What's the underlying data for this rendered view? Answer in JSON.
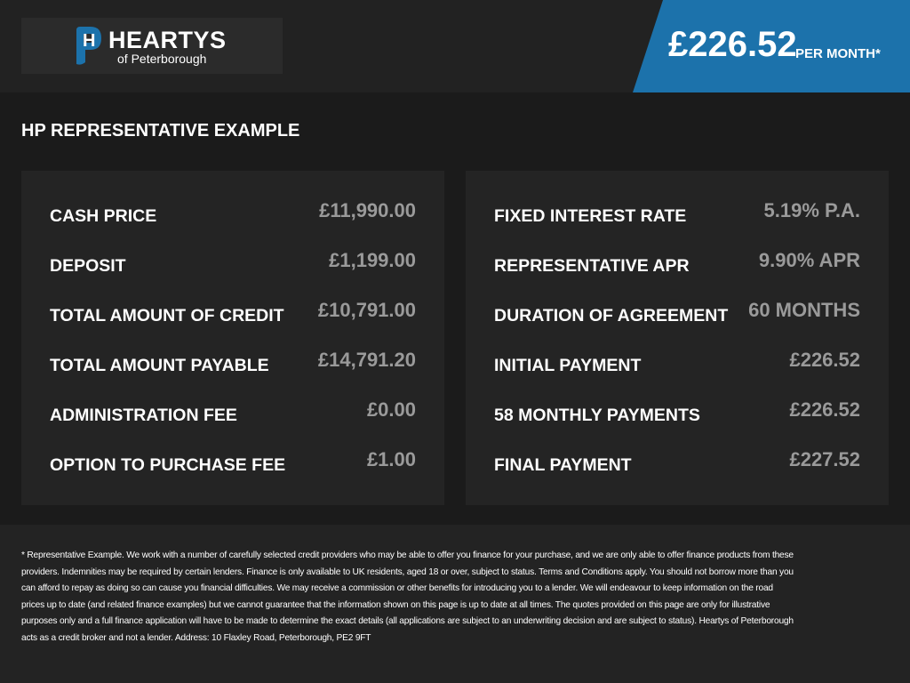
{
  "header": {
    "logo": {
      "name": "HEARTYS",
      "location": "of Peterborough"
    },
    "price": "£226.52",
    "price_note": "PER MONTH*"
  },
  "title": "HP REPRESENTATIVE EXAMPLE",
  "panels": [
    {
      "rows": [
        [
          "CASH PRICE",
          "£11,990.00"
        ],
        [
          "DEPOSIT",
          "£1,199.00"
        ],
        [
          "TOTAL AMOUNT OF CREDIT",
          "£10,791.00"
        ],
        [
          "TOTAL AMOUNT PAYABLE",
          "£14,791.20"
        ],
        [
          "ADMINISTRATION FEE",
          "£0.00"
        ],
        [
          "OPTION TO PURCHASE FEE",
          "£1.00"
        ]
      ]
    },
    {
      "rows": [
        [
          "FIXED INTEREST RATE",
          "5.19% P.A."
        ],
        [
          "REPRESENTATIVE APR",
          "9.90% APR"
        ],
        [
          "DURATION OF AGREEMENT",
          "60 MONTHS"
        ],
        [
          "INITIAL PAYMENT",
          "£226.52"
        ],
        [
          "58 MONTHLY PAYMENTS",
          "£226.52"
        ],
        [
          "FINAL PAYMENT",
          "£227.52"
        ]
      ]
    }
  ],
  "disclaimer": "* Representative Example. We work with a number of carefully selected credit providers who may be able to offer you finance for your purchase, and we are only able to offer finance products from these providers. Indemnities may be required by certain lenders. Finance is only available to UK residents, aged 18 or over, subject to status. Terms and Conditions apply. You should not borrow more than you can afford to repay as doing so can cause you financial difficulties. We may receive a commission or other benefits for introducing you to a lender. We will endeavour to keep information on the road prices up to date (and related finance examples) but we cannot guarantee that the information shown on this page is up to date at all times. The quotes provided on this page are only for illustrative purposes only and a full finance application will have to be made to determine the exact details (all applications are subject to an underwriting decision and are subject to status). Heartys of Peterborough acts as a credit broker and not a lender. Address: 10 Flaxley Road, Peterborough, PE2 9FT"
}
